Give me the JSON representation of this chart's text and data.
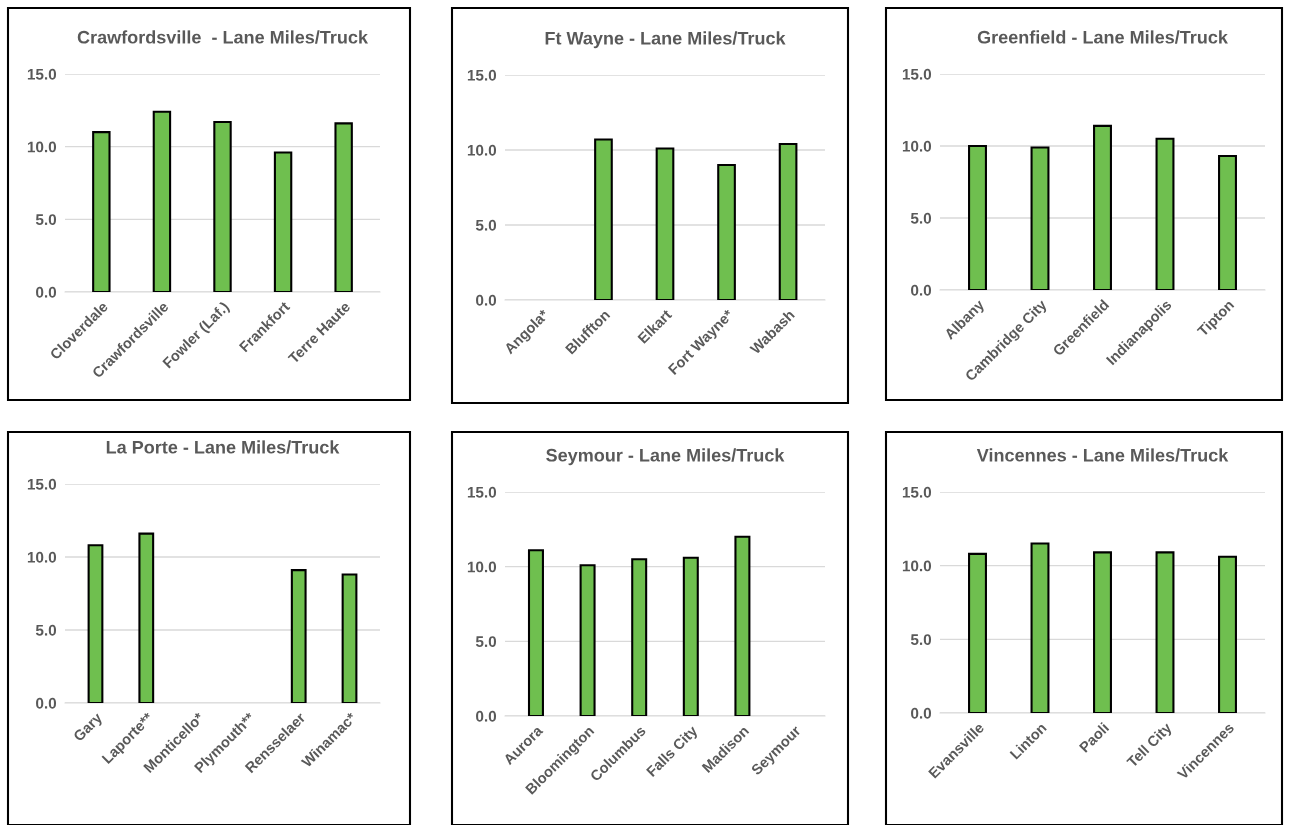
{
  "chart_data": [
    {
      "type": "bar",
      "title": "Crawfordsville  - Lane Miles/Truck",
      "categories": [
        "Cloverdale",
        "Crawfordsville",
        "Fowler (Laf.)",
        "Frankfort",
        "Terre Haute"
      ],
      "values": [
        11.0,
        12.4,
        11.7,
        9.6,
        11.6
      ],
      "color": "#6fbf4f",
      "ylim": [
        0,
        15
      ],
      "yticks": [
        {
          "value": 0,
          "label": "0.0"
        },
        {
          "value": 5,
          "label": "5.0"
        },
        {
          "value": 10,
          "label": "10.0"
        },
        {
          "value": 15,
          "label": "15.0"
        }
      ],
      "grid": "y"
    },
    {
      "type": "bar",
      "title": "Ft Wayne - Lane Miles/Truck",
      "categories": [
        "Angola*",
        "Bluffton",
        "Elkart",
        "Fort Wayne*",
        "Wabash"
      ],
      "values": [
        null,
        10.7,
        10.1,
        9.0,
        10.4
      ],
      "color": "#6fbf4f",
      "ylim": [
        0,
        15
      ],
      "yticks": [
        {
          "value": 0,
          "label": "0.0"
        },
        {
          "value": 5,
          "label": "5.0"
        },
        {
          "value": 10,
          "label": "10.0"
        },
        {
          "value": 15,
          "label": "15.0"
        }
      ],
      "grid": "y"
    },
    {
      "type": "bar",
      "title": "Greenfield - Lane Miles/Truck",
      "categories": [
        "Albany",
        "Cambridge City",
        "Greenfield",
        "Indianapolis",
        "Tipton"
      ],
      "values": [
        10.0,
        9.9,
        11.4,
        10.5,
        9.3
      ],
      "color": "#6fbf4f",
      "ylim": [
        0,
        15
      ],
      "yticks": [
        {
          "value": 0,
          "label": "0.0"
        },
        {
          "value": 5,
          "label": "5.0"
        },
        {
          "value": 10,
          "label": "10.0"
        },
        {
          "value": 15,
          "label": "15.0"
        }
      ],
      "grid": "y"
    },
    {
      "type": "bar",
      "title": "La Porte - Lane Miles/Truck",
      "categories": [
        "Gary",
        "Laporte**",
        "Monticello*",
        "Plymouth**",
        "Rensselaer",
        "Winamac*"
      ],
      "values": [
        10.8,
        11.6,
        null,
        null,
        9.1,
        8.8
      ],
      "color": "#6fbf4f",
      "ylim": [
        0,
        15
      ],
      "yticks": [
        {
          "value": 0,
          "label": "0.0"
        },
        {
          "value": 5,
          "label": "5.0"
        },
        {
          "value": 10,
          "label": "10.0"
        },
        {
          "value": 15,
          "label": "15.0"
        }
      ],
      "grid": "y"
    },
    {
      "type": "bar",
      "title": "Seymour - Lane Miles/Truck",
      "categories": [
        "Aurora",
        "Bloomington",
        "Columbus",
        "Falls City",
        "Madison",
        "Seymour"
      ],
      "values": [
        11.1,
        10.1,
        10.5,
        10.6,
        12.0,
        null
      ],
      "color": "#6fbf4f",
      "ylim": [
        0,
        15
      ],
      "yticks": [
        {
          "value": 0,
          "label": "0.0"
        },
        {
          "value": 5,
          "label": "5.0"
        },
        {
          "value": 10,
          "label": "10.0"
        },
        {
          "value": 15,
          "label": "15.0"
        }
      ],
      "grid": "y"
    },
    {
      "type": "bar",
      "title": "Vincennes - Lane Miles/Truck",
      "categories": [
        "Evansville",
        "Linton",
        "Paoli",
        "Tell City",
        "Vincennes"
      ],
      "values": [
        10.8,
        11.5,
        10.9,
        10.9,
        10.6
      ],
      "color": "#6fbf4f",
      "ylim": [
        0,
        15
      ],
      "yticks": [
        {
          "value": 0,
          "label": "0.0"
        },
        {
          "value": 5,
          "label": "5.0"
        },
        {
          "value": 10,
          "label": "10.0"
        },
        {
          "value": 15,
          "label": "15.0"
        }
      ],
      "grid": "y"
    }
  ]
}
